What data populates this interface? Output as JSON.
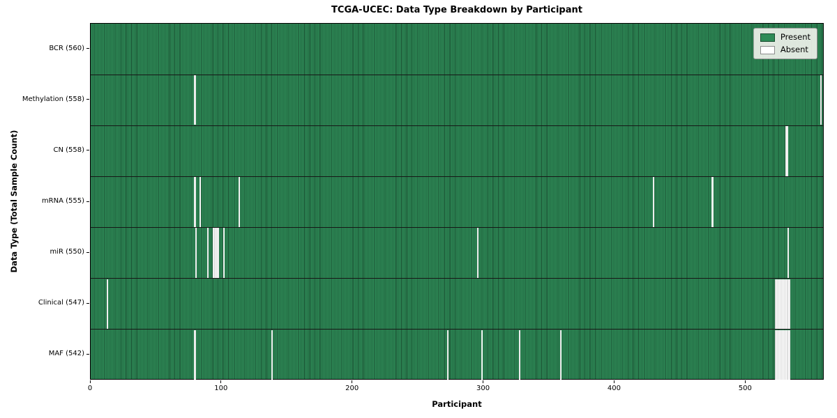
{
  "chart_data": {
    "type": "heatmap",
    "title": "TCGA-UCEC: Data Type Breakdown by Participant",
    "xlabel": "Participant",
    "ylabel": "Data Type (Total Sample Count)",
    "total_participants": 560,
    "x_ticks": [
      0,
      100,
      200,
      300,
      400,
      500
    ],
    "legend": {
      "position": "upper right",
      "entries": [
        {
          "label": "Present",
          "color": "#2e8b57"
        },
        {
          "label": "Absent",
          "color": "#ffffff"
        }
      ]
    },
    "rows": [
      {
        "data_type": "BCR",
        "label": "BCR (560)",
        "present_count": 560,
        "absent_participants": []
      },
      {
        "data_type": "Methylation",
        "label": "Methylation (558)",
        "present_count": 558,
        "absent_participants": [
          79,
          557
        ]
      },
      {
        "data_type": "CN",
        "label": "CN (558)",
        "present_count": 558,
        "absent_participants": [
          530,
          531
        ]
      },
      {
        "data_type": "mRNA",
        "label": "mRNA (555)",
        "present_count": 555,
        "absent_participants": [
          79,
          83,
          113,
          429,
          474
        ]
      },
      {
        "data_type": "miR",
        "label": "miR (550)",
        "present_count": 550,
        "absent_participants": [
          80,
          89,
          93,
          94,
          95,
          96,
          97,
          101,
          295,
          532
        ]
      },
      {
        "data_type": "Clinical",
        "label": "Clinical (547)",
        "present_count": 547,
        "absent_participants": [
          12,
          522,
          523,
          524,
          525,
          526,
          527,
          528,
          529,
          530,
          531,
          532,
          533
        ]
      },
      {
        "data_type": "MAF",
        "label": "MAF (542)",
        "present_count": 542,
        "absent_participants": [
          79,
          138,
          272,
          298,
          327,
          358,
          522,
          523,
          524,
          525,
          526,
          527,
          528,
          529,
          530,
          531,
          532,
          533
        ]
      }
    ],
    "colors": {
      "present": "#2e8b57",
      "absent": "#ffffff",
      "bar_edge_overlay": "rgba(0,0,0,0.45)",
      "row_divider": "#161616",
      "spine": "#000000",
      "legend_background": "rgba(243,243,238,0.9)",
      "legend_border": "#9a9a9a"
    }
  }
}
